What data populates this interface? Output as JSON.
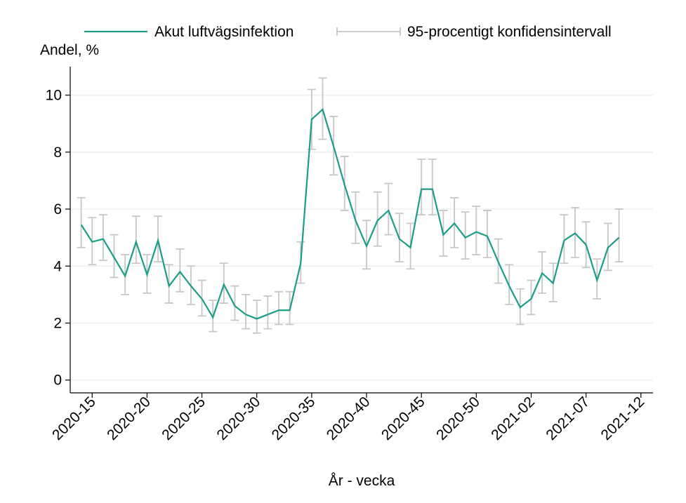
{
  "chart_data": {
    "type": "line",
    "y_label": "Andel, %",
    "x_label": "År - vecka",
    "categories": [
      null,
      "2020-15",
      null,
      null,
      null,
      null,
      "2020-20",
      null,
      null,
      null,
      null,
      "2020-25",
      null,
      null,
      null,
      null,
      "2020-30",
      null,
      null,
      null,
      null,
      "2020-35",
      null,
      null,
      null,
      null,
      "2020-40",
      null,
      null,
      null,
      null,
      "2020-45",
      null,
      null,
      null,
      null,
      "2020-50",
      null,
      null,
      null,
      null,
      "2021-02",
      null,
      null,
      null,
      null,
      "2021-07",
      null,
      null,
      null,
      null,
      "2021-12"
    ],
    "xlim": [
      -1,
      52.1
    ],
    "ylim": [
      -0.45,
      11.0
    ],
    "yticks": [
      0,
      2,
      4,
      6,
      8,
      10
    ],
    "grid": true,
    "series": [
      {
        "name": "Akut luftvägsinfektion",
        "color": "#1a9e87",
        "ci_name": "95-procentigt konfidensintervall",
        "ci_color": "#c8c8c8",
        "values": [
          5.45,
          4.85,
          4.95,
          4.3,
          3.65,
          4.85,
          3.7,
          4.9,
          3.3,
          3.8,
          3.3,
          2.85,
          2.2,
          3.35,
          2.6,
          2.3,
          2.15,
          2.3,
          2.45,
          2.45,
          4.1,
          9.15,
          9.5,
          8.2,
          6.85,
          5.6,
          4.7,
          5.6,
          5.95,
          4.95,
          4.65,
          6.7,
          6.7,
          5.1,
          5.5,
          5.0,
          5.2,
          5.05,
          4.15,
          3.3,
          2.55,
          2.85,
          3.75,
          3.4,
          4.9,
          5.15,
          4.75,
          3.5,
          4.65,
          5.0,
          null,
          null
        ],
        "lower": [
          4.65,
          4.05,
          4.2,
          3.6,
          3.0,
          4.1,
          3.05,
          4.15,
          2.7,
          3.1,
          2.65,
          2.25,
          1.7,
          2.7,
          2.1,
          1.8,
          1.65,
          1.8,
          1.95,
          1.95,
          3.4,
          8.1,
          8.45,
          7.2,
          5.95,
          4.8,
          3.9,
          4.7,
          5.1,
          4.15,
          3.9,
          5.8,
          5.8,
          4.35,
          4.65,
          4.25,
          4.4,
          4.3,
          3.4,
          2.65,
          1.95,
          2.3,
          3.05,
          2.75,
          4.1,
          4.3,
          3.95,
          2.85,
          3.85,
          4.15,
          null,
          null
        ],
        "upper": [
          6.4,
          5.7,
          5.8,
          5.1,
          4.4,
          5.75,
          4.4,
          5.75,
          4.05,
          4.6,
          4.0,
          3.5,
          2.8,
          4.1,
          3.3,
          3.0,
          2.8,
          2.95,
          3.1,
          3.1,
          4.85,
          10.2,
          10.6,
          9.25,
          7.85,
          6.6,
          5.6,
          6.6,
          6.9,
          5.85,
          5.5,
          7.75,
          7.75,
          5.95,
          6.4,
          5.9,
          6.1,
          5.95,
          4.95,
          4.05,
          3.2,
          3.5,
          4.5,
          4.1,
          5.8,
          6.05,
          5.55,
          4.25,
          5.5,
          6.0,
          null,
          null
        ]
      }
    ]
  }
}
